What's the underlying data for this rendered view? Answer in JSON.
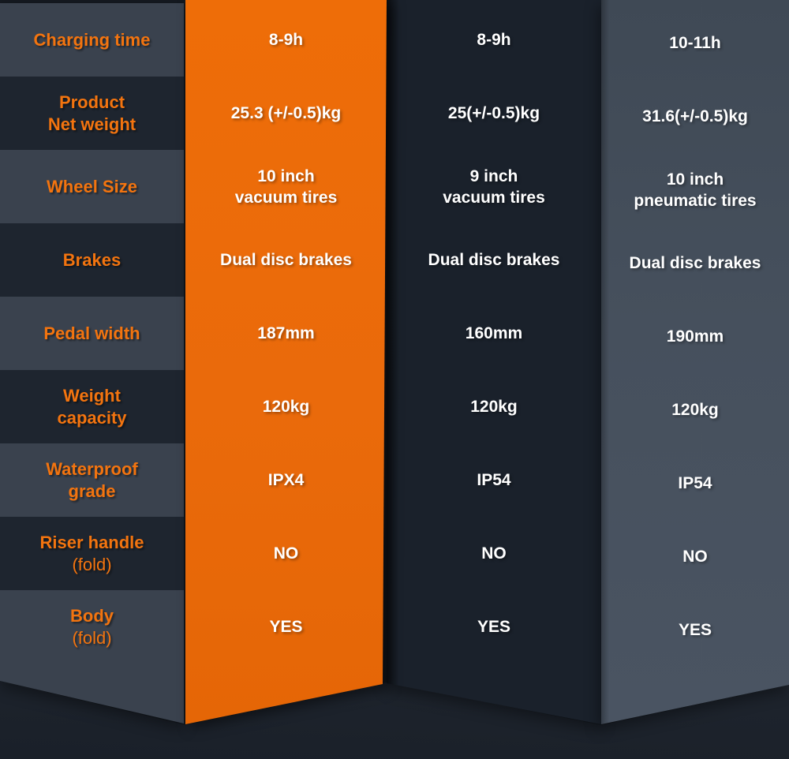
{
  "title": "Scooter specification comparison table",
  "colors": {
    "accent_orange": "#ec6a08",
    "label_text_orange": "#f3740f",
    "label_row_light": "#3a424e",
    "label_row_dark": "#1e252f",
    "column2_bg": "#1a212b",
    "column3_bg": "#46505d",
    "value_text": "#ffffff",
    "background": "#151a21"
  },
  "chart_data": {
    "type": "table",
    "title": "",
    "row_headers": [
      {
        "line1": "Charging time",
        "line2": ""
      },
      {
        "line1": "Product",
        "line2": "Net weight"
      },
      {
        "line1": "Wheel Size",
        "line2": ""
      },
      {
        "line1": "Brakes",
        "line2": ""
      },
      {
        "line1": "Pedal width",
        "line2": ""
      },
      {
        "line1": "Weight",
        "line2": "capacity"
      },
      {
        "line1": "Waterproof",
        "line2": "grade"
      },
      {
        "line1": "Riser handle",
        "line2": "(fold)"
      },
      {
        "line1": "Body",
        "line2": "(fold)"
      }
    ],
    "columns": [
      {
        "name": "product-column-1-highlighted",
        "cells": [
          {
            "line1": "8-9h",
            "line2": ""
          },
          {
            "line1": "25.3 (+/-0.5)kg",
            "line2": ""
          },
          {
            "line1": "10 inch",
            "line2": "vacuum tires"
          },
          {
            "line1": "Dual disc brakes",
            "line2": ""
          },
          {
            "line1": "187mm",
            "line2": ""
          },
          {
            "line1": "120kg",
            "line2": ""
          },
          {
            "line1": "IPX4",
            "line2": ""
          },
          {
            "line1": "NO",
            "line2": ""
          },
          {
            "line1": "YES",
            "line2": ""
          }
        ]
      },
      {
        "name": "product-column-2",
        "cells": [
          {
            "line1": "8-9h",
            "line2": ""
          },
          {
            "line1": "25(+/-0.5)kg",
            "line2": ""
          },
          {
            "line1": "9 inch",
            "line2": "vacuum tires"
          },
          {
            "line1": "Dual disc brakes",
            "line2": ""
          },
          {
            "line1": "160mm",
            "line2": ""
          },
          {
            "line1": "120kg",
            "line2": ""
          },
          {
            "line1": "IP54",
            "line2": ""
          },
          {
            "line1": "NO",
            "line2": ""
          },
          {
            "line1": "YES",
            "line2": ""
          }
        ]
      },
      {
        "name": "product-column-3",
        "cells": [
          {
            "line1": "10-11h",
            "line2": ""
          },
          {
            "line1": "31.6(+/-0.5)kg",
            "line2": ""
          },
          {
            "line1": "10 inch",
            "line2": "pneumatic tires"
          },
          {
            "line1": "Dual disc brakes",
            "line2": ""
          },
          {
            "line1": "190mm",
            "line2": ""
          },
          {
            "line1": "120kg",
            "line2": ""
          },
          {
            "line1": "IP54",
            "line2": ""
          },
          {
            "line1": "NO",
            "line2": ""
          },
          {
            "line1": "YES",
            "line2": ""
          }
        ]
      }
    ]
  }
}
